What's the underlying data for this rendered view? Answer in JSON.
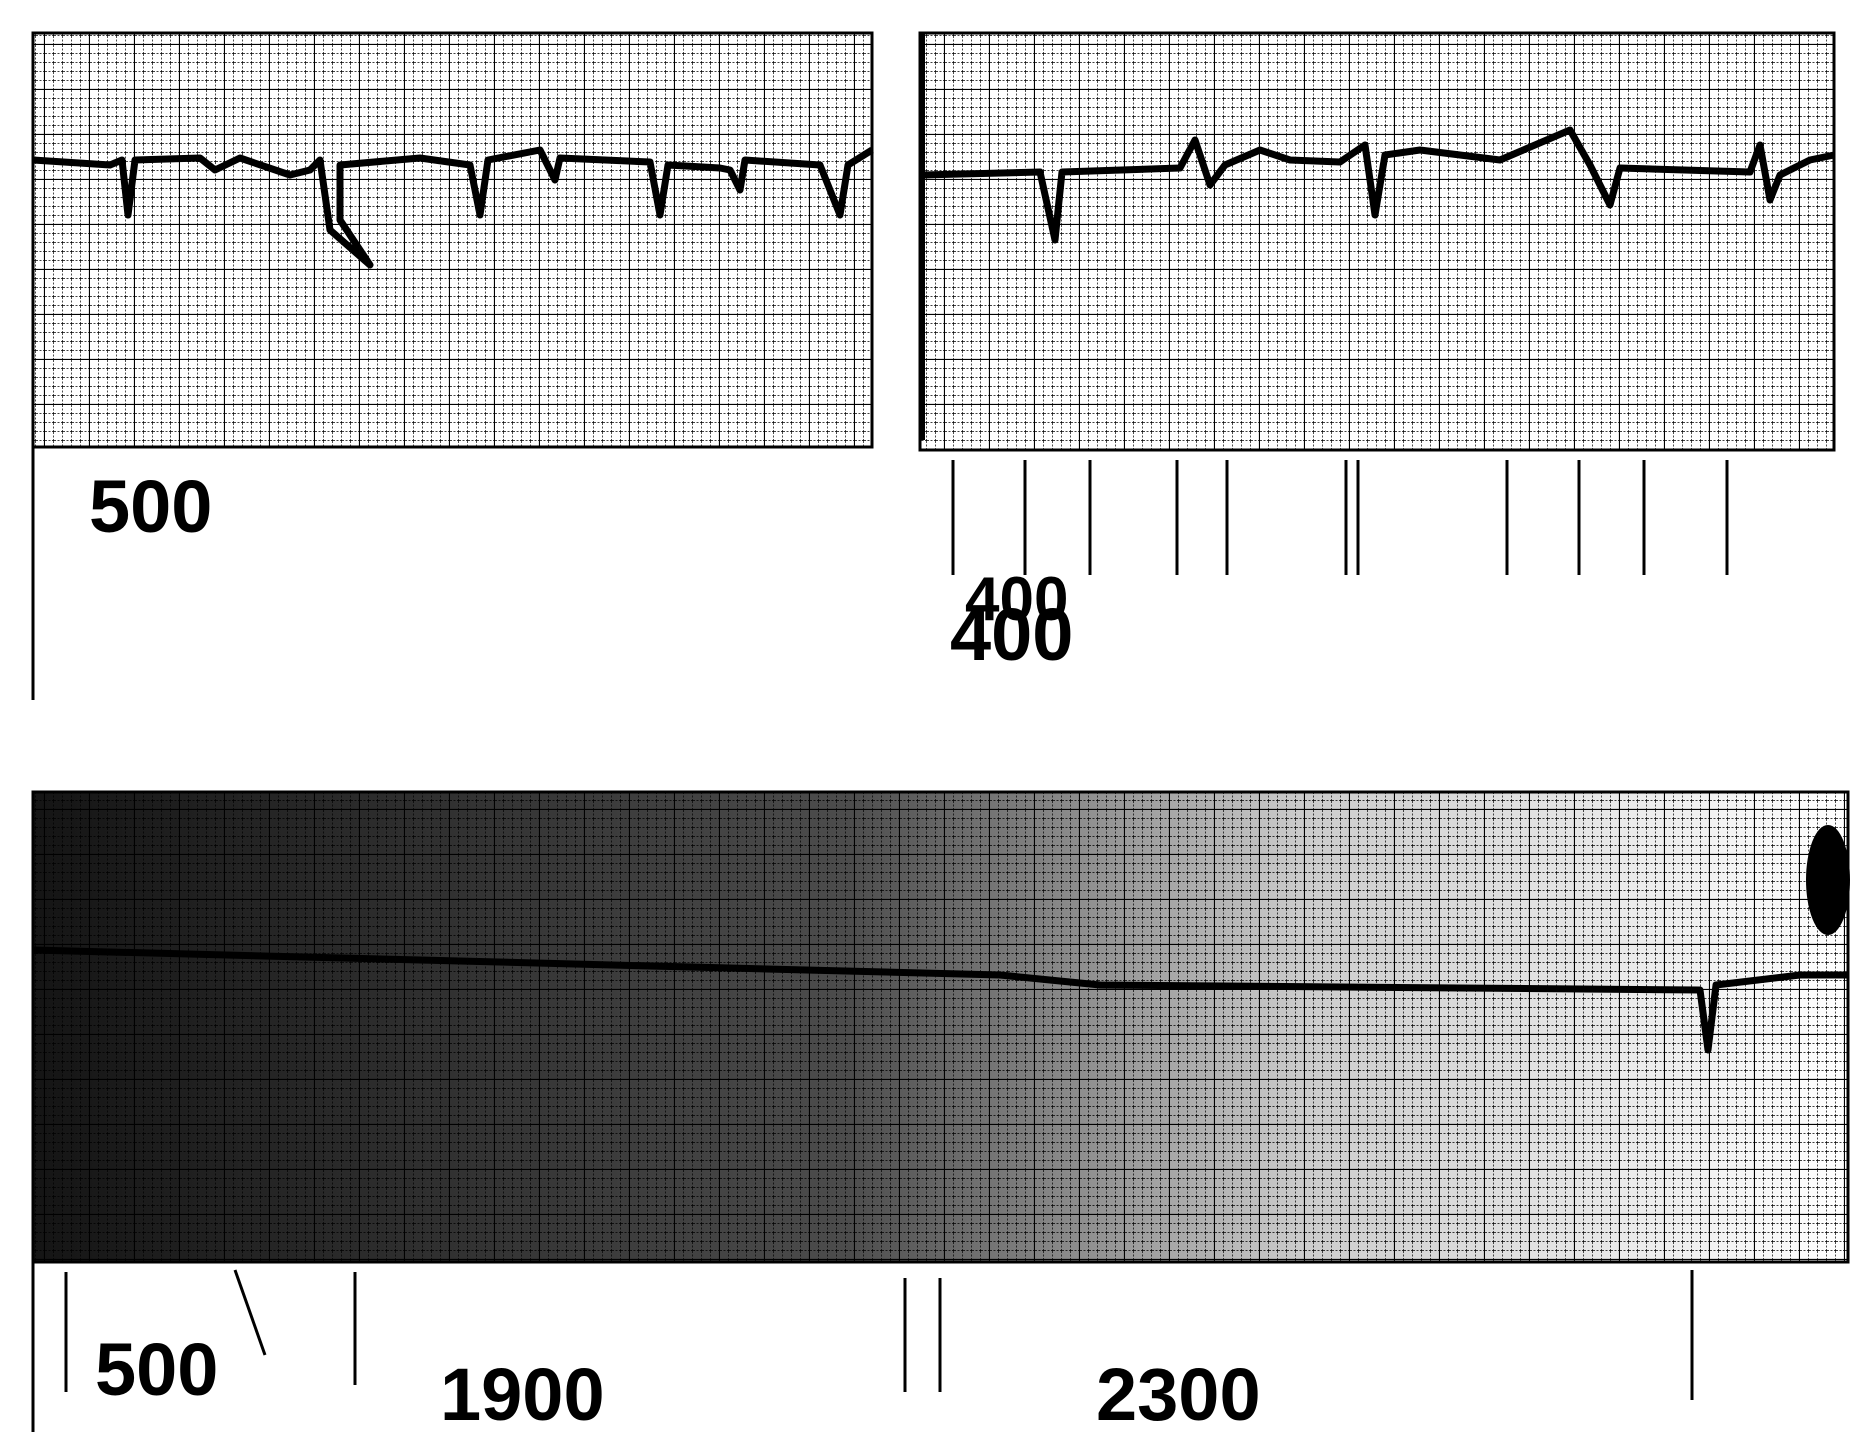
{
  "strips": [
    {
      "labels": [
        "500"
      ]
    },
    {
      "labels": [
        "400",
        "400"
      ]
    },
    {
      "labels": [
        "500",
        "1900",
        "2300"
      ]
    }
  ]
}
